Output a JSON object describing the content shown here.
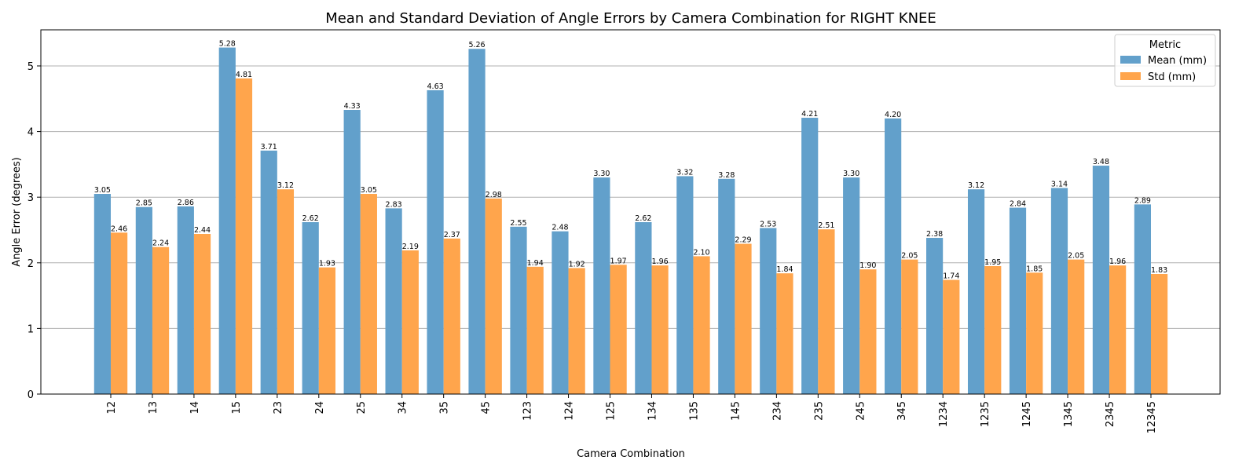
{
  "chart_data": {
    "type": "bar",
    "title": "Mean and Standard Deviation of Angle Errors by Camera Combination for RIGHT KNEE",
    "xlabel": "Camera Combination",
    "ylabel": "Angle Error (degrees)",
    "ylim": [
      0,
      5.55
    ],
    "yticks": [
      0,
      1,
      2,
      3,
      4,
      5
    ],
    "grid": "y",
    "legend_title": "Metric",
    "legend_position": "top-right",
    "categories": [
      "12",
      "13",
      "14",
      "15",
      "23",
      "24",
      "25",
      "34",
      "35",
      "45",
      "123",
      "124",
      "125",
      "134",
      "135",
      "145",
      "234",
      "235",
      "245",
      "345",
      "1234",
      "1235",
      "1245",
      "1345",
      "2345",
      "12345"
    ],
    "series": [
      {
        "name": "Mean (mm)",
        "color": "#62a0cb",
        "values": [
          3.05,
          2.85,
          2.86,
          5.28,
          3.71,
          2.62,
          4.33,
          2.83,
          4.63,
          5.26,
          2.55,
          2.48,
          3.3,
          2.62,
          3.32,
          3.28,
          2.53,
          4.21,
          3.3,
          4.2,
          2.38,
          3.12,
          2.84,
          3.14,
          3.48,
          2.89
        ]
      },
      {
        "name": "Std (mm)",
        "color": "#ffa54c",
        "values": [
          2.46,
          2.24,
          2.44,
          4.81,
          3.12,
          1.93,
          3.05,
          2.19,
          2.37,
          2.98,
          1.94,
          1.92,
          1.97,
          1.96,
          2.1,
          2.29,
          1.84,
          2.51,
          1.9,
          2.05,
          1.74,
          1.95,
          1.85,
          2.05,
          1.96,
          1.83
        ]
      }
    ]
  }
}
